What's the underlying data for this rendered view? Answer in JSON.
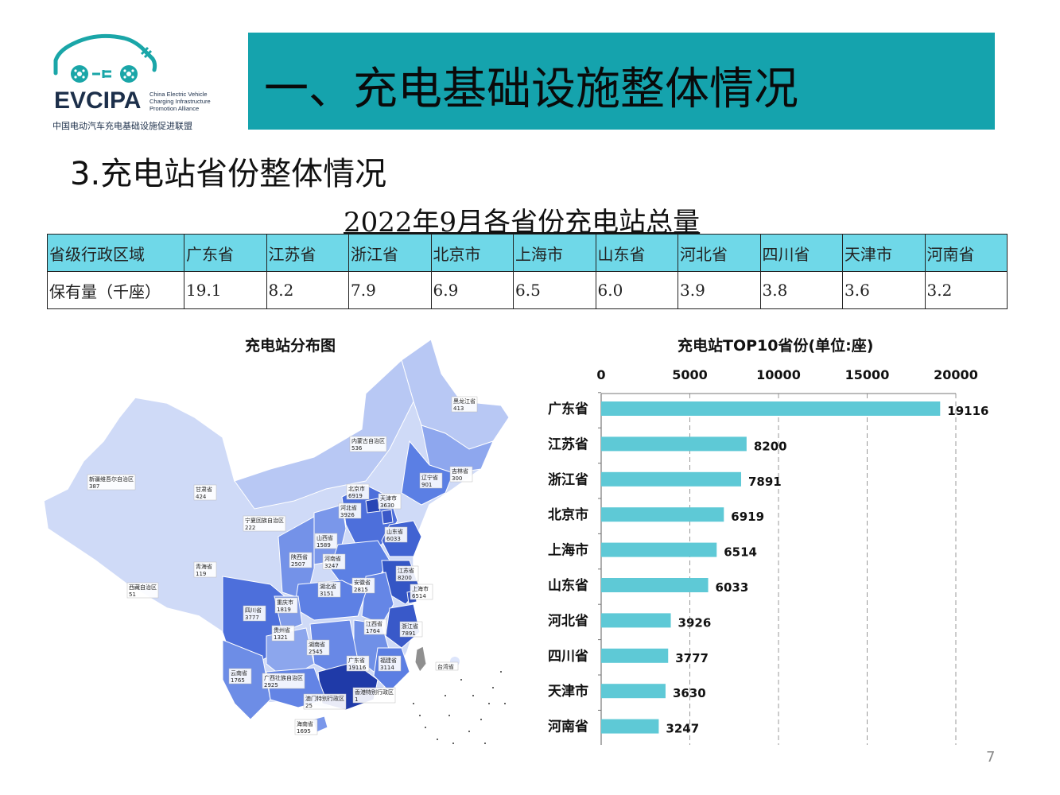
{
  "logo": {
    "brand": "EVCIPA",
    "sub_line1": "China Electric Vehicle",
    "sub_line2": "Charging Infrastructure",
    "sub_line3": "Promotion Alliance",
    "cn_name": "中国电动汽车充电基础设施促进联盟"
  },
  "header": {
    "title": "一、充电基础设施整体情况"
  },
  "section": {
    "title": "3.充电站省份整体情况"
  },
  "table": {
    "title": "2022年9月各省份充电站总量",
    "head": [
      "省级行政区域",
      "广东省",
      "江苏省",
      "浙江省",
      "北京市",
      "上海市",
      "山东省",
      "河北省",
      "四川省",
      "天津市",
      "河南省"
    ],
    "row": [
      "保有量（千座）",
      "19.1",
      "8.2",
      "7.9",
      "6.9",
      "6.5",
      "6.0",
      "3.9",
      "3.8",
      "3.6",
      "3.2"
    ]
  },
  "map": {
    "title": "充电站分布图",
    "regions": [
      {
        "name": "黑龙江省",
        "value": "413"
      },
      {
        "name": "内蒙古自治区",
        "value": "536"
      },
      {
        "name": "吉林省",
        "value": "300"
      },
      {
        "name": "辽宁省",
        "value": "901"
      },
      {
        "name": "新疆维吾尔自治区",
        "value": "387"
      },
      {
        "name": "甘肃省",
        "value": "424"
      },
      {
        "name": "北京市",
        "value": "6919"
      },
      {
        "name": "天津市",
        "value": "3630"
      },
      {
        "name": "河北省",
        "value": "3926"
      },
      {
        "name": "宁夏回族自治区",
        "value": "222"
      },
      {
        "name": "山东省",
        "value": "6033"
      },
      {
        "name": "山西省",
        "value": "1589"
      },
      {
        "name": "青海省",
        "value": "119"
      },
      {
        "name": "陕西省",
        "value": "2507"
      },
      {
        "name": "河南省",
        "value": "3247"
      },
      {
        "name": "江苏省",
        "value": "8200"
      },
      {
        "name": "西藏自治区",
        "value": "51"
      },
      {
        "name": "湖北省",
        "value": "3151"
      },
      {
        "name": "安徽省",
        "value": "2815"
      },
      {
        "name": "上海市",
        "value": "6514"
      },
      {
        "name": "四川省",
        "value": "3777"
      },
      {
        "name": "重庆市",
        "value": "1819"
      },
      {
        "name": "浙江省",
        "value": "7891"
      },
      {
        "name": "江西省",
        "value": "1764"
      },
      {
        "name": "贵州省",
        "value": "1321"
      },
      {
        "name": "湖南省",
        "value": "2545"
      },
      {
        "name": "台湾省",
        "value": ""
      },
      {
        "name": "广东省",
        "value": "19116"
      },
      {
        "name": "福建省",
        "value": "3114"
      },
      {
        "name": "云南省",
        "value": "1765"
      },
      {
        "name": "广西壮族自治区",
        "value": "2925"
      },
      {
        "name": "澳门特别行政区",
        "value": "25"
      },
      {
        "name": "香港特别行政区",
        "value": "1"
      },
      {
        "name": "海南省",
        "value": "1695"
      }
    ]
  },
  "chart_data": {
    "type": "bar",
    "orientation": "horizontal",
    "title": "充电站TOP10省份(单位:座)",
    "categories": [
      "广东省",
      "江苏省",
      "浙江省",
      "北京市",
      "上海市",
      "山东省",
      "河北省",
      "四川省",
      "天津市",
      "河南省"
    ],
    "values": [
      19116,
      8200,
      7891,
      6919,
      6514,
      6033,
      3926,
      3777,
      3630,
      3247
    ],
    "xlim": [
      0,
      20000
    ],
    "xticks": [
      "0",
      "5000",
      "10000",
      "15000",
      "20000"
    ],
    "axis_position": "top",
    "grid": true,
    "bar_color": "#5ec9d6"
  },
  "page": {
    "number": "7"
  }
}
